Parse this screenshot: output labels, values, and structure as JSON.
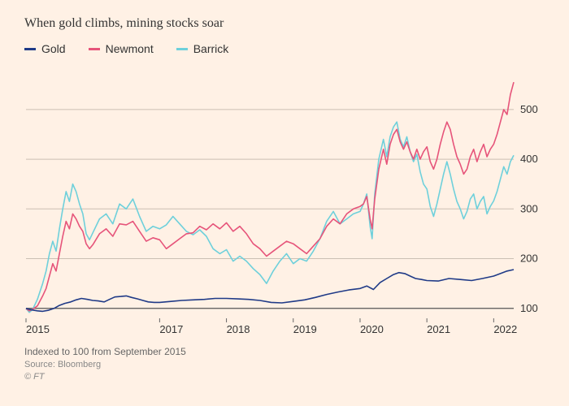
{
  "chart": {
    "type": "line",
    "title": "When gold climbs, mining stocks soar",
    "background_color": "#fff1e5",
    "title_color": "#333333",
    "title_fontsize": 16,
    "label_fontsize": 13,
    "grid_color": "#cbbfb3",
    "axis_color": "#555555",
    "x": {
      "ticks": [
        2015,
        2017,
        2018,
        2019,
        2020,
        2021,
        2022
      ],
      "min": 2015,
      "max": 2022.3
    },
    "y": {
      "ticks": [
        100,
        200,
        300,
        400,
        500
      ],
      "min": 80,
      "max": 570
    },
    "legend": [
      {
        "label": "Gold",
        "color": "#1f3a87"
      },
      {
        "label": "Newmont",
        "color": "#e6547a"
      },
      {
        "label": "Barrick",
        "color": "#6ed0db"
      }
    ],
    "series": {
      "gold": {
        "color": "#1f3a87",
        "line_width": 1.6,
        "points": [
          [
            2015.0,
            100
          ],
          [
            2015.08,
            97
          ],
          [
            2015.17,
            95
          ],
          [
            2015.25,
            94
          ],
          [
            2015.33,
            96
          ],
          [
            2015.42,
            100
          ],
          [
            2015.5,
            106
          ],
          [
            2015.58,
            110
          ],
          [
            2015.67,
            113
          ],
          [
            2015.75,
            117
          ],
          [
            2015.83,
            120
          ],
          [
            2015.92,
            118
          ],
          [
            2016.0,
            116
          ],
          [
            2016.08,
            115
          ],
          [
            2016.17,
            113
          ],
          [
            2016.25,
            118
          ],
          [
            2016.33,
            123
          ],
          [
            2016.42,
            124
          ],
          [
            2016.5,
            125
          ],
          [
            2016.58,
            122
          ],
          [
            2016.67,
            119
          ],
          [
            2016.75,
            116
          ],
          [
            2016.83,
            113
          ],
          [
            2016.92,
            112
          ],
          [
            2017.0,
            112
          ],
          [
            2017.17,
            114
          ],
          [
            2017.33,
            116
          ],
          [
            2017.5,
            117
          ],
          [
            2017.67,
            118
          ],
          [
            2017.83,
            120
          ],
          [
            2018.0,
            120
          ],
          [
            2018.17,
            119
          ],
          [
            2018.33,
            118
          ],
          [
            2018.5,
            116
          ],
          [
            2018.67,
            112
          ],
          [
            2018.83,
            111
          ],
          [
            2019.0,
            114
          ],
          [
            2019.17,
            117
          ],
          [
            2019.33,
            122
          ],
          [
            2019.5,
            128
          ],
          [
            2019.67,
            133
          ],
          [
            2019.83,
            137
          ],
          [
            2020.0,
            140
          ],
          [
            2020.1,
            145
          ],
          [
            2020.2,
            138
          ],
          [
            2020.3,
            152
          ],
          [
            2020.4,
            160
          ],
          [
            2020.5,
            168
          ],
          [
            2020.58,
            172
          ],
          [
            2020.67,
            170
          ],
          [
            2020.75,
            165
          ],
          [
            2020.83,
            160
          ],
          [
            2020.92,
            158
          ],
          [
            2021.0,
            156
          ],
          [
            2021.17,
            155
          ],
          [
            2021.33,
            160
          ],
          [
            2021.5,
            158
          ],
          [
            2021.67,
            156
          ],
          [
            2021.83,
            160
          ],
          [
            2022.0,
            165
          ],
          [
            2022.1,
            170
          ],
          [
            2022.2,
            175
          ],
          [
            2022.3,
            178
          ]
        ]
      },
      "newmont": {
        "color": "#e6547a",
        "line_width": 1.6,
        "points": [
          [
            2015.0,
            100
          ],
          [
            2015.05,
            95
          ],
          [
            2015.1,
            98
          ],
          [
            2015.17,
            105
          ],
          [
            2015.25,
            125
          ],
          [
            2015.3,
            140
          ],
          [
            2015.35,
            165
          ],
          [
            2015.4,
            190
          ],
          [
            2015.45,
            175
          ],
          [
            2015.5,
            210
          ],
          [
            2015.55,
            245
          ],
          [
            2015.6,
            275
          ],
          [
            2015.65,
            260
          ],
          [
            2015.7,
            290
          ],
          [
            2015.75,
            280
          ],
          [
            2015.8,
            265
          ],
          [
            2015.85,
            255
          ],
          [
            2015.9,
            230
          ],
          [
            2015.95,
            220
          ],
          [
            2016.0,
            228
          ],
          [
            2016.1,
            250
          ],
          [
            2016.2,
            260
          ],
          [
            2016.3,
            245
          ],
          [
            2016.4,
            270
          ],
          [
            2016.5,
            268
          ],
          [
            2016.6,
            275
          ],
          [
            2016.7,
            255
          ],
          [
            2016.8,
            235
          ],
          [
            2016.9,
            242
          ],
          [
            2017.0,
            238
          ],
          [
            2017.1,
            220
          ],
          [
            2017.2,
            230
          ],
          [
            2017.3,
            240
          ],
          [
            2017.4,
            250
          ],
          [
            2017.5,
            252
          ],
          [
            2017.6,
            265
          ],
          [
            2017.7,
            258
          ],
          [
            2017.8,
            270
          ],
          [
            2017.9,
            260
          ],
          [
            2018.0,
            272
          ],
          [
            2018.1,
            255
          ],
          [
            2018.2,
            265
          ],
          [
            2018.3,
            250
          ],
          [
            2018.4,
            230
          ],
          [
            2018.5,
            220
          ],
          [
            2018.6,
            205
          ],
          [
            2018.7,
            215
          ],
          [
            2018.8,
            225
          ],
          [
            2018.9,
            235
          ],
          [
            2019.0,
            230
          ],
          [
            2019.1,
            220
          ],
          [
            2019.2,
            210
          ],
          [
            2019.3,
            225
          ],
          [
            2019.4,
            240
          ],
          [
            2019.5,
            265
          ],
          [
            2019.6,
            280
          ],
          [
            2019.7,
            270
          ],
          [
            2019.8,
            290
          ],
          [
            2019.9,
            300
          ],
          [
            2020.0,
            305
          ],
          [
            2020.05,
            310
          ],
          [
            2020.1,
            325
          ],
          [
            2020.15,
            280
          ],
          [
            2020.18,
            260
          ],
          [
            2020.22,
            320
          ],
          [
            2020.28,
            380
          ],
          [
            2020.35,
            420
          ],
          [
            2020.4,
            390
          ],
          [
            2020.45,
            430
          ],
          [
            2020.5,
            450
          ],
          [
            2020.55,
            460
          ],
          [
            2020.6,
            435
          ],
          [
            2020.65,
            420
          ],
          [
            2020.7,
            435
          ],
          [
            2020.75,
            415
          ],
          [
            2020.8,
            400
          ],
          [
            2020.85,
            420
          ],
          [
            2020.9,
            400
          ],
          [
            2020.95,
            415
          ],
          [
            2021.0,
            425
          ],
          [
            2021.05,
            395
          ],
          [
            2021.1,
            380
          ],
          [
            2021.15,
            400
          ],
          [
            2021.2,
            430
          ],
          [
            2021.25,
            455
          ],
          [
            2021.3,
            475
          ],
          [
            2021.35,
            460
          ],
          [
            2021.4,
            430
          ],
          [
            2021.45,
            405
          ],
          [
            2021.5,
            390
          ],
          [
            2021.55,
            370
          ],
          [
            2021.6,
            380
          ],
          [
            2021.65,
            405
          ],
          [
            2021.7,
            420
          ],
          [
            2021.75,
            395
          ],
          [
            2021.8,
            415
          ],
          [
            2021.85,
            430
          ],
          [
            2021.9,
            405
          ],
          [
            2021.95,
            420
          ],
          [
            2022.0,
            430
          ],
          [
            2022.05,
            450
          ],
          [
            2022.1,
            475
          ],
          [
            2022.15,
            500
          ],
          [
            2022.2,
            490
          ],
          [
            2022.25,
            530
          ],
          [
            2022.3,
            555
          ]
        ]
      },
      "barrick": {
        "color": "#6ed0db",
        "line_width": 1.6,
        "points": [
          [
            2015.0,
            100
          ],
          [
            2015.05,
            92
          ],
          [
            2015.1,
            98
          ],
          [
            2015.17,
            118
          ],
          [
            2015.25,
            150
          ],
          [
            2015.3,
            175
          ],
          [
            2015.35,
            210
          ],
          [
            2015.4,
            235
          ],
          [
            2015.45,
            215
          ],
          [
            2015.5,
            260
          ],
          [
            2015.55,
            300
          ],
          [
            2015.6,
            335
          ],
          [
            2015.65,
            315
          ],
          [
            2015.7,
            350
          ],
          [
            2015.75,
            335
          ],
          [
            2015.8,
            310
          ],
          [
            2015.85,
            290
          ],
          [
            2015.9,
            250
          ],
          [
            2015.95,
            238
          ],
          [
            2016.0,
            252
          ],
          [
            2016.1,
            280
          ],
          [
            2016.2,
            290
          ],
          [
            2016.3,
            270
          ],
          [
            2016.4,
            310
          ],
          [
            2016.5,
            300
          ],
          [
            2016.6,
            320
          ],
          [
            2016.7,
            285
          ],
          [
            2016.8,
            255
          ],
          [
            2016.9,
            265
          ],
          [
            2017.0,
            260
          ],
          [
            2017.1,
            268
          ],
          [
            2017.2,
            285
          ],
          [
            2017.3,
            270
          ],
          [
            2017.4,
            255
          ],
          [
            2017.5,
            248
          ],
          [
            2017.6,
            258
          ],
          [
            2017.7,
            245
          ],
          [
            2017.8,
            220
          ],
          [
            2017.9,
            210
          ],
          [
            2018.0,
            218
          ],
          [
            2018.1,
            195
          ],
          [
            2018.2,
            205
          ],
          [
            2018.3,
            195
          ],
          [
            2018.4,
            180
          ],
          [
            2018.5,
            168
          ],
          [
            2018.6,
            150
          ],
          [
            2018.7,
            175
          ],
          [
            2018.8,
            195
          ],
          [
            2018.9,
            210
          ],
          [
            2019.0,
            190
          ],
          [
            2019.1,
            200
          ],
          [
            2019.2,
            195
          ],
          [
            2019.3,
            215
          ],
          [
            2019.4,
            240
          ],
          [
            2019.5,
            275
          ],
          [
            2019.6,
            295
          ],
          [
            2019.7,
            270
          ],
          [
            2019.8,
            280
          ],
          [
            2019.9,
            290
          ],
          [
            2020.0,
            295
          ],
          [
            2020.05,
            310
          ],
          [
            2020.1,
            330
          ],
          [
            2020.15,
            265
          ],
          [
            2020.18,
            240
          ],
          [
            2020.22,
            330
          ],
          [
            2020.28,
            400
          ],
          [
            2020.35,
            440
          ],
          [
            2020.4,
            405
          ],
          [
            2020.45,
            445
          ],
          [
            2020.5,
            465
          ],
          [
            2020.55,
            475
          ],
          [
            2020.6,
            440
          ],
          [
            2020.65,
            425
          ],
          [
            2020.7,
            445
          ],
          [
            2020.75,
            415
          ],
          [
            2020.8,
            395
          ],
          [
            2020.85,
            410
          ],
          [
            2020.9,
            375
          ],
          [
            2020.95,
            350
          ],
          [
            2021.0,
            340
          ],
          [
            2021.05,
            305
          ],
          [
            2021.1,
            285
          ],
          [
            2021.15,
            310
          ],
          [
            2021.2,
            340
          ],
          [
            2021.25,
            370
          ],
          [
            2021.3,
            395
          ],
          [
            2021.35,
            370
          ],
          [
            2021.4,
            340
          ],
          [
            2021.45,
            315
          ],
          [
            2021.5,
            300
          ],
          [
            2021.55,
            280
          ],
          [
            2021.6,
            295
          ],
          [
            2021.65,
            320
          ],
          [
            2021.7,
            330
          ],
          [
            2021.75,
            300
          ],
          [
            2021.8,
            315
          ],
          [
            2021.85,
            325
          ],
          [
            2021.9,
            290
          ],
          [
            2021.95,
            305
          ],
          [
            2022.0,
            316
          ],
          [
            2022.05,
            335
          ],
          [
            2022.1,
            360
          ],
          [
            2022.15,
            385
          ],
          [
            2022.2,
            370
          ],
          [
            2022.25,
            395
          ],
          [
            2022.3,
            408
          ]
        ]
      }
    },
    "footnote": "Indexed to 100 from September 2015",
    "source": "Source: Bloomberg",
    "copyright": "© FT"
  }
}
